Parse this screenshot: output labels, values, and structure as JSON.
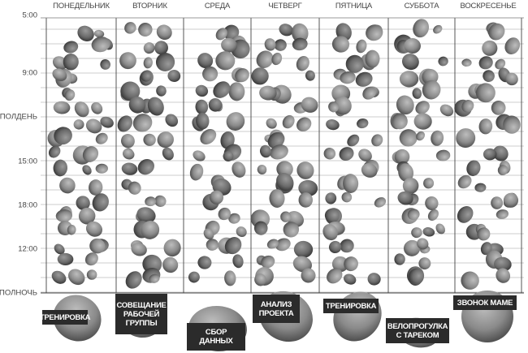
{
  "days": [
    "ПОНЕДЕЛЬНИК",
    "ВТОРНИК",
    "СРЕДА",
    "ЧЕТВЕРГ",
    "ПЯТНИЦА",
    "СУББОТА",
    "ВОСКРЕСЕНЬЕ"
  ],
  "times": [
    "5:00",
    "9:00",
    "ПОЛДЕНЬ",
    "15:00",
    "18:00",
    "12:00",
    "ПОЛНОЧЬ"
  ],
  "tasks": [
    "ТРЕНИРОВКА",
    "СОВЕЩАНИЕ РАБОЧЕЙ ГРУППЫ",
    "СБОР ДАННЫХ",
    "АНАЛИЗ ПРОЕКТА",
    "ТРЕНИРОВКА",
    "ВЕЛОПРОГУЛКА С ТАРЕКОМ",
    "ЗВОНОК МАМЕ"
  ],
  "colors": {
    "stone": "#8a8a8a",
    "tag": "#2b2b2b",
    "grid": "#555555"
  }
}
